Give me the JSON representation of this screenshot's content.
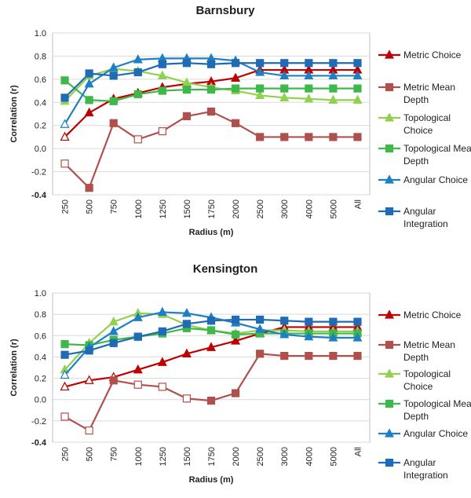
{
  "chart_data": [
    {
      "type": "line",
      "title": "Barnsbury",
      "xlabel": "Radius (m)",
      "ylabel": "Correlation (r)",
      "ylim": [
        -0.4,
        1.0
      ],
      "yticks": [
        "1.0",
        "0.8",
        "0.6",
        "0.4",
        "0.2",
        "0.0",
        "-0.2",
        "-0.4"
      ],
      "ytick_values": [
        1.0,
        0.8,
        0.6,
        0.4,
        0.2,
        0.0,
        -0.2,
        -0.4
      ],
      "grid": true,
      "legend_position": "right",
      "categories": [
        "250",
        "500",
        "750",
        "1000",
        "1250",
        "1500",
        "1750",
        "2000",
        "2500",
        "3000",
        "4000",
        "5000",
        "All"
      ],
      "series": [
        {
          "name": "Metric Choice",
          "color": "#c00000",
          "marker": "triangle",
          "hollow": [
            0
          ],
          "values": [
            0.1,
            0.31,
            0.43,
            0.48,
            0.53,
            0.56,
            0.58,
            0.61,
            0.68,
            0.68,
            0.68,
            0.68,
            0.68
          ]
        },
        {
          "name": "Metric Mean Depth",
          "color": "#b0504c",
          "marker": "square",
          "hollow": [
            0,
            3,
            4
          ],
          "values": [
            -0.13,
            -0.34,
            0.22,
            0.08,
            0.15,
            0.28,
            0.32,
            0.22,
            0.1,
            0.1,
            0.1,
            0.1,
            0.1
          ]
        },
        {
          "name": "Topological Choice",
          "color": "#92d050",
          "marker": "triangle",
          "hollow": [],
          "values": [
            0.41,
            0.63,
            0.69,
            0.67,
            0.63,
            0.57,
            0.53,
            0.5,
            0.46,
            0.44,
            0.43,
            0.42,
            0.42
          ]
        },
        {
          "name": "Topological Mean Depth",
          "color": "#3fb84b",
          "marker": "square",
          "hollow": [],
          "values": [
            0.59,
            0.42,
            0.41,
            0.47,
            0.5,
            0.51,
            0.51,
            0.52,
            0.52,
            0.52,
            0.52,
            0.52,
            0.52
          ]
        },
        {
          "name": "Angular Choice",
          "color": "#1f7fc4",
          "marker": "triangle",
          "hollow": [
            0
          ],
          "values": [
            0.21,
            0.56,
            0.7,
            0.77,
            0.78,
            0.78,
            0.78,
            0.76,
            0.66,
            0.63,
            0.63,
            0.63,
            0.63
          ]
        },
        {
          "name": "Angular Integration",
          "color": "#1f6bb5",
          "marker": "square",
          "hollow": [],
          "values": [
            0.44,
            0.65,
            0.63,
            0.66,
            0.73,
            0.74,
            0.73,
            0.74,
            0.74,
            0.74,
            0.74,
            0.74,
            0.74
          ]
        }
      ]
    },
    {
      "type": "line",
      "title": "Kensington",
      "xlabel": "Radius (m)",
      "ylabel": "Correlation (r)",
      "ylim": [
        -0.4,
        1.0
      ],
      "yticks": [
        "1.0",
        "0.8",
        "0.6",
        "0.4",
        "0.2",
        "0.0",
        "-0.2",
        "-0.4"
      ],
      "ytick_values": [
        1.0,
        0.8,
        0.6,
        0.4,
        0.2,
        0.0,
        -0.2,
        -0.4
      ],
      "grid": true,
      "legend_position": "right",
      "categories": [
        "250",
        "500",
        "750",
        "1000",
        "1250",
        "1500",
        "1750",
        "2000",
        "2500",
        "3000",
        "4000",
        "5000",
        "All"
      ],
      "series": [
        {
          "name": "Metric Choice",
          "color": "#c00000",
          "marker": "triangle",
          "hollow": [
            0,
            1,
            2
          ],
          "values": [
            0.12,
            0.18,
            0.21,
            0.28,
            0.35,
            0.43,
            0.49,
            0.55,
            0.62,
            0.68,
            0.68,
            0.68,
            0.68
          ]
        },
        {
          "name": "Metric Mean Depth",
          "color": "#b0504c",
          "marker": "square",
          "hollow": [
            0,
            1,
            3,
            4,
            5
          ],
          "values": [
            -0.16,
            -0.29,
            0.18,
            0.14,
            0.12,
            0.01,
            -0.01,
            0.06,
            0.43,
            0.41,
            0.41,
            0.41,
            0.41
          ]
        },
        {
          "name": "Topological Choice",
          "color": "#92d050",
          "marker": "triangle",
          "hollow": [],
          "values": [
            0.28,
            0.53,
            0.73,
            0.81,
            0.8,
            0.7,
            0.65,
            0.62,
            0.65,
            0.65,
            0.64,
            0.64,
            0.64
          ]
        },
        {
          "name": "Topological Mean Depth",
          "color": "#3fb84b",
          "marker": "square",
          "hollow": [],
          "values": [
            0.52,
            0.51,
            0.56,
            0.59,
            0.62,
            0.67,
            0.65,
            0.61,
            0.62,
            0.62,
            0.62,
            0.62,
            0.62
          ]
        },
        {
          "name": "Angular Choice",
          "color": "#1f7fc4",
          "marker": "triangle",
          "hollow": [
            0
          ],
          "values": [
            0.23,
            0.49,
            0.64,
            0.77,
            0.82,
            0.81,
            0.77,
            0.72,
            0.66,
            0.61,
            0.59,
            0.58,
            0.58
          ]
        },
        {
          "name": "Angular Integration",
          "color": "#1f6bb5",
          "marker": "square",
          "hollow": [],
          "values": [
            0.42,
            0.46,
            0.53,
            0.59,
            0.64,
            0.71,
            0.74,
            0.75,
            0.75,
            0.74,
            0.73,
            0.73,
            0.73
          ]
        }
      ]
    }
  ]
}
